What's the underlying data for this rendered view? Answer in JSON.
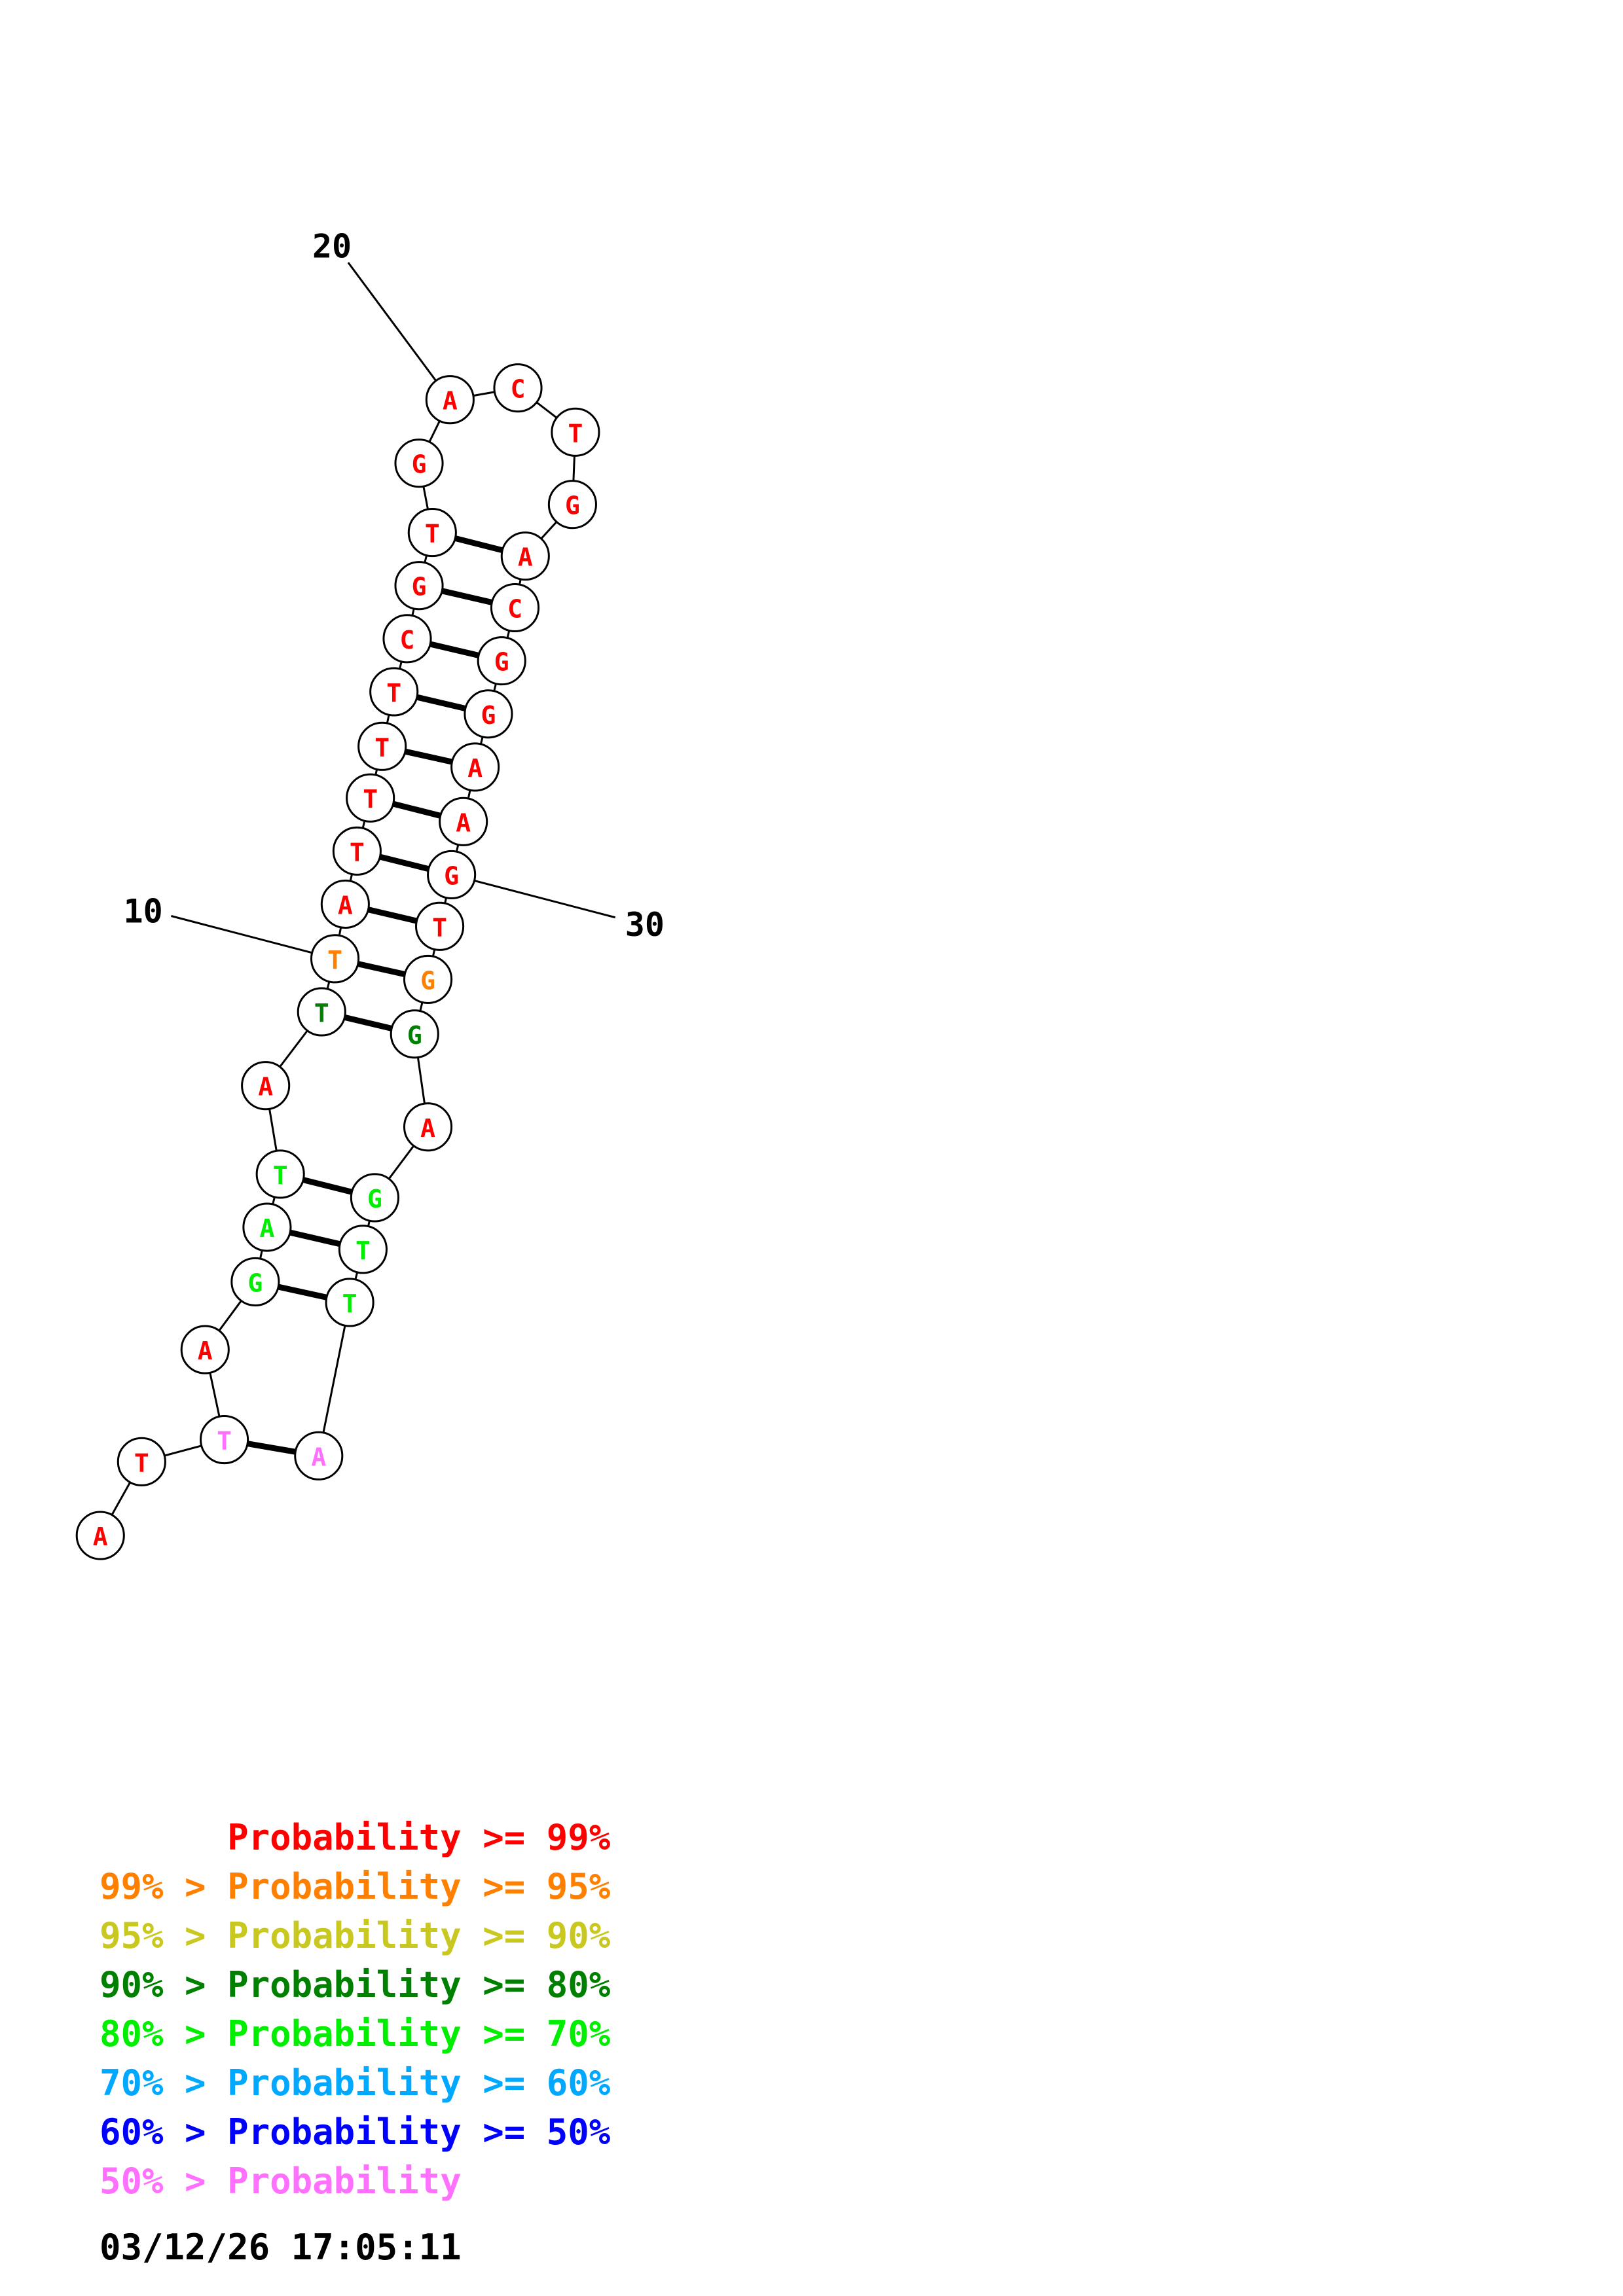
{
  "colors": {
    "p99": "#ff0000",
    "p95": "#ff8000",
    "p90": "#c8c820",
    "p80": "#008000",
    "p70": "#00ee00",
    "p60": "#00a8ff",
    "p50": "#0000ff",
    "plow": "#ff70ff"
  },
  "structure": {
    "nucleotides": [
      {
        "base": "A",
        "color": "p99"
      },
      {
        "base": "T",
        "color": "p99"
      },
      {
        "base": "T",
        "color": "plow"
      },
      {
        "base": "A",
        "color": "p99"
      },
      {
        "base": "G",
        "color": "p70"
      },
      {
        "base": "A",
        "color": "p70"
      },
      {
        "base": "T",
        "color": "p70"
      },
      {
        "base": "A",
        "color": "p99"
      },
      {
        "base": "T",
        "color": "p80"
      },
      {
        "base": "T",
        "color": "p95"
      },
      {
        "base": "A",
        "color": "p99"
      },
      {
        "base": "T",
        "color": "p99"
      },
      {
        "base": "T",
        "color": "p99"
      },
      {
        "base": "T",
        "color": "p99"
      },
      {
        "base": "T",
        "color": "p99"
      },
      {
        "base": "C",
        "color": "p99"
      },
      {
        "base": "G",
        "color": "p99"
      },
      {
        "base": "T",
        "color": "p99"
      },
      {
        "base": "G",
        "color": "p99"
      },
      {
        "base": "A",
        "color": "p99"
      },
      {
        "base": "C",
        "color": "p99"
      },
      {
        "base": "T",
        "color": "p99"
      },
      {
        "base": "G",
        "color": "p99"
      },
      {
        "base": "A",
        "color": "p99"
      },
      {
        "base": "C",
        "color": "p99"
      },
      {
        "base": "G",
        "color": "p99"
      },
      {
        "base": "G",
        "color": "p99"
      },
      {
        "base": "A",
        "color": "p99"
      },
      {
        "base": "A",
        "color": "p99"
      },
      {
        "base": "G",
        "color": "p99"
      },
      {
        "base": "T",
        "color": "p99"
      },
      {
        "base": "G",
        "color": "p95"
      },
      {
        "base": "G",
        "color": "p80"
      },
      {
        "base": "A",
        "color": "p99"
      },
      {
        "base": "G",
        "color": "p70"
      },
      {
        "base": "T",
        "color": "p70"
      },
      {
        "base": "T",
        "color": "p70"
      },
      {
        "base": "A",
        "color": "plow"
      }
    ],
    "pairs": [
      [
        3,
        38
      ],
      [
        5,
        37
      ],
      [
        6,
        36
      ],
      [
        7,
        35
      ],
      [
        9,
        33
      ],
      [
        10,
        32
      ],
      [
        11,
        31
      ],
      [
        12,
        30
      ],
      [
        13,
        29
      ],
      [
        14,
        28
      ],
      [
        15,
        27
      ],
      [
        16,
        26
      ],
      [
        17,
        25
      ],
      [
        18,
        24
      ]
    ],
    "number_labels": [
      {
        "index": 10,
        "text": "10"
      },
      {
        "index": 20,
        "text": "20"
      },
      {
        "index": 30,
        "text": "30"
      }
    ]
  },
  "legend": [
    {
      "prefix": "",
      "label": "Probability",
      "suffix": "99%",
      "color": "p99"
    },
    {
      "prefix": "99%",
      "label": "Probability",
      "suffix": "95%",
      "color": "p95"
    },
    {
      "prefix": "95%",
      "label": "Probability",
      "suffix": "90%",
      "color": "p90"
    },
    {
      "prefix": "90%",
      "label": "Probability",
      "suffix": "80%",
      "color": "p80"
    },
    {
      "prefix": "80%",
      "label": "Probability",
      "suffix": "70%",
      "color": "p70"
    },
    {
      "prefix": "70%",
      "label": "Probability",
      "suffix": "60%",
      "color": "p60"
    },
    {
      "prefix": "60%",
      "label": "Probability",
      "suffix": "50%",
      "color": "p50"
    },
    {
      "prefix": "50%",
      "label": "Probability",
      "suffix": "",
      "color": "plow"
    }
  ],
  "timestamp": "03/12/26 17:05:11"
}
